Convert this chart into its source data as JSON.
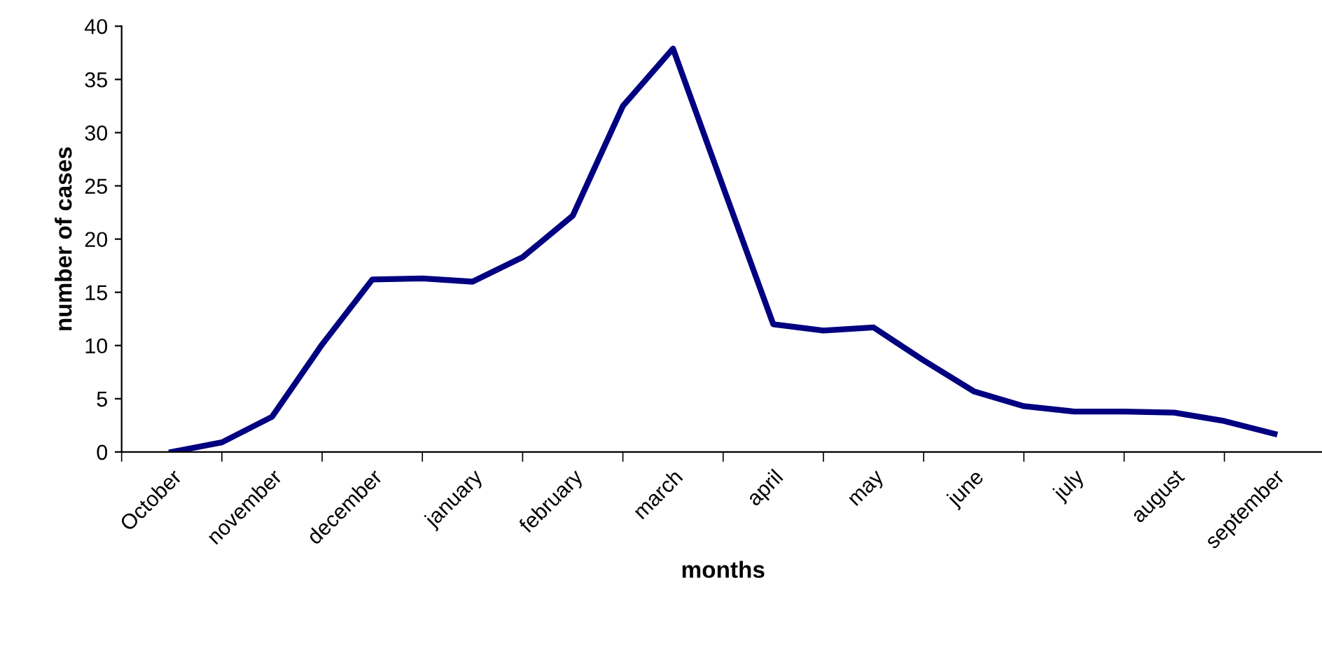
{
  "chart_data": {
    "type": "line",
    "xlabel": "months",
    "ylabel": "number of cases",
    "categories": [
      "October",
      null,
      "november",
      null,
      "december",
      null,
      "january",
      null,
      "february",
      null,
      "march",
      null,
      "april",
      null,
      "may",
      null,
      "june",
      null,
      "july",
      null,
      "august",
      null,
      "september"
    ],
    "series": [
      {
        "color": "#000080",
        "values": [
          0,
          0.9,
          3.3,
          10.1,
          16.2,
          16.3,
          16.0,
          18.3,
          22.2,
          32.5,
          37.9,
          24.9,
          12.0,
          11.4,
          11.7,
          8.6,
          5.7,
          4.3,
          3.8,
          3.8,
          3.7,
          2.9,
          1.7
        ]
      }
    ],
    "ylim": [
      0,
      40
    ],
    "yticks": [
      0,
      5,
      10,
      15,
      20,
      25,
      30,
      35,
      40
    ],
    "grid": false,
    "legend": false,
    "marker": "none",
    "line_style": "solid"
  }
}
